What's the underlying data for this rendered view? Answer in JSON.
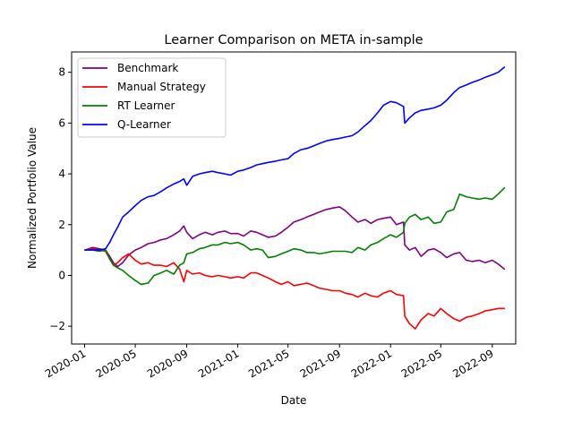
{
  "chart_data": {
    "type": "line",
    "title": "Learner Comparison on META in-sample",
    "xlabel": "Date",
    "ylabel": "Normalized Portfolio Value",
    "xlim": [
      "2019-12-01",
      "2022-10-27"
    ],
    "ylim": [
      -2.7,
      8.8
    ],
    "grid": false,
    "legend_position": "top-left",
    "x_ticks": [
      "2020-01",
      "2020-05",
      "2020-09",
      "2021-01",
      "2021-05",
      "2021-09",
      "2022-01",
      "2022-05",
      "2022-09"
    ],
    "y_ticks": [
      {
        "value": -2,
        "label": "−2"
      },
      {
        "value": 0,
        "label": "0"
      },
      {
        "value": 2,
        "label": "2"
      },
      {
        "value": 4,
        "label": "4"
      },
      {
        "value": 6,
        "label": "6"
      },
      {
        "value": 8,
        "label": "8"
      }
    ],
    "x": [
      "2020-01-02",
      "2020-01-20",
      "2020-02-05",
      "2020-02-20",
      "2020-03-01",
      "2020-03-10",
      "2020-03-20",
      "2020-04-01",
      "2020-04-15",
      "2020-05-01",
      "2020-05-15",
      "2020-06-01",
      "2020-06-15",
      "2020-07-01",
      "2020-07-15",
      "2020-08-01",
      "2020-08-15",
      "2020-08-25",
      "2020-09-01",
      "2020-09-15",
      "2020-10-01",
      "2020-10-15",
      "2020-11-01",
      "2020-11-15",
      "2020-12-01",
      "2020-12-15",
      "2021-01-01",
      "2021-01-15",
      "2021-02-01",
      "2021-02-15",
      "2021-03-01",
      "2021-03-15",
      "2021-04-01",
      "2021-04-15",
      "2021-05-01",
      "2021-05-15",
      "2021-06-01",
      "2021-06-15",
      "2021-07-01",
      "2021-07-15",
      "2021-08-01",
      "2021-08-15",
      "2021-09-01",
      "2021-09-15",
      "2021-10-01",
      "2021-10-15",
      "2021-11-01",
      "2021-11-15",
      "2021-12-01",
      "2021-12-15",
      "2022-01-01",
      "2022-01-15",
      "2022-02-01",
      "2022-02-04",
      "2022-02-15",
      "2022-03-01",
      "2022-03-15",
      "2022-04-01",
      "2022-04-15",
      "2022-05-01",
      "2022-05-15",
      "2022-06-01",
      "2022-06-15",
      "2022-07-01",
      "2022-07-15",
      "2022-08-01",
      "2022-08-15",
      "2022-09-01",
      "2022-09-15",
      "2022-09-30"
    ],
    "series": [
      {
        "name": "Benchmark",
        "color": "#800080",
        "values": [
          1.0,
          1.1,
          1.05,
          1.0,
          0.75,
          0.5,
          0.35,
          0.5,
          0.8,
          1.0,
          1.1,
          1.25,
          1.3,
          1.4,
          1.45,
          1.6,
          1.75,
          1.95,
          1.7,
          1.45,
          1.6,
          1.7,
          1.6,
          1.7,
          1.75,
          1.65,
          1.65,
          1.55,
          1.75,
          1.7,
          1.6,
          1.5,
          1.55,
          1.7,
          1.9,
          2.1,
          2.2,
          2.3,
          2.4,
          2.5,
          2.6,
          2.65,
          2.7,
          2.55,
          2.3,
          2.1,
          2.2,
          2.05,
          2.2,
          2.25,
          2.3,
          2.0,
          2.1,
          1.2,
          1.0,
          1.1,
          0.75,
          1.0,
          1.05,
          0.9,
          0.7,
          0.85,
          0.9,
          0.6,
          0.55,
          0.6,
          0.5,
          0.6,
          0.45,
          0.25
        ]
      },
      {
        "name": "Manual Strategy",
        "color": "#ff0000",
        "values": [
          1.0,
          1.05,
          1.0,
          0.95,
          0.65,
          0.4,
          0.5,
          0.7,
          0.85,
          0.6,
          0.45,
          0.5,
          0.4,
          0.4,
          0.35,
          0.5,
          0.25,
          -0.25,
          0.2,
          0.05,
          0.1,
          0.0,
          -0.05,
          0.0,
          -0.05,
          -0.1,
          -0.05,
          -0.1,
          0.1,
          0.1,
          0.0,
          -0.1,
          -0.25,
          -0.35,
          -0.25,
          -0.4,
          -0.35,
          -0.3,
          -0.4,
          -0.5,
          -0.55,
          -0.6,
          -0.6,
          -0.7,
          -0.75,
          -0.85,
          -0.7,
          -0.8,
          -0.85,
          -0.7,
          -0.6,
          -0.75,
          -0.8,
          -1.6,
          -1.9,
          -2.1,
          -1.75,
          -1.5,
          -1.6,
          -1.3,
          -1.5,
          -1.7,
          -1.8,
          -1.65,
          -1.6,
          -1.5,
          -1.4,
          -1.35,
          -1.3,
          -1.3
        ]
      },
      {
        "name": "RT Learner",
        "color": "#008000",
        "values": [
          1.0,
          1.0,
          0.95,
          1.0,
          0.65,
          0.4,
          0.3,
          0.2,
          0.0,
          -0.2,
          -0.35,
          -0.3,
          0.0,
          0.1,
          0.2,
          0.05,
          0.4,
          0.5,
          0.85,
          0.9,
          1.05,
          1.1,
          1.2,
          1.2,
          1.3,
          1.25,
          1.3,
          1.2,
          1.0,
          1.05,
          1.0,
          0.7,
          0.75,
          0.85,
          0.95,
          1.05,
          1.0,
          0.9,
          0.9,
          0.85,
          0.9,
          0.95,
          0.95,
          0.95,
          0.9,
          1.1,
          1.0,
          1.2,
          1.3,
          1.45,
          1.6,
          1.5,
          1.7,
          2.05,
          2.3,
          2.4,
          2.2,
          2.3,
          2.05,
          2.1,
          2.5,
          2.6,
          3.2,
          3.1,
          3.05,
          3.0,
          3.05,
          3.0,
          3.2,
          3.45
        ]
      },
      {
        "name": "Q-Learner",
        "color": "#0000ff",
        "values": [
          1.0,
          1.0,
          1.0,
          1.05,
          1.3,
          1.6,
          1.9,
          2.3,
          2.5,
          2.75,
          2.95,
          3.1,
          3.15,
          3.3,
          3.45,
          3.6,
          3.7,
          3.8,
          3.55,
          3.9,
          4.0,
          4.05,
          4.1,
          4.05,
          4.0,
          3.95,
          4.1,
          4.15,
          4.25,
          4.35,
          4.4,
          4.45,
          4.5,
          4.55,
          4.6,
          4.8,
          4.95,
          5.0,
          5.1,
          5.2,
          5.3,
          5.35,
          5.4,
          5.45,
          5.5,
          5.65,
          5.9,
          6.1,
          6.4,
          6.7,
          6.85,
          6.8,
          6.65,
          6.0,
          6.2,
          6.4,
          6.5,
          6.55,
          6.6,
          6.7,
          6.9,
          7.2,
          7.4,
          7.5,
          7.6,
          7.7,
          7.8,
          7.9,
          8.0,
          8.2
        ]
      }
    ]
  }
}
